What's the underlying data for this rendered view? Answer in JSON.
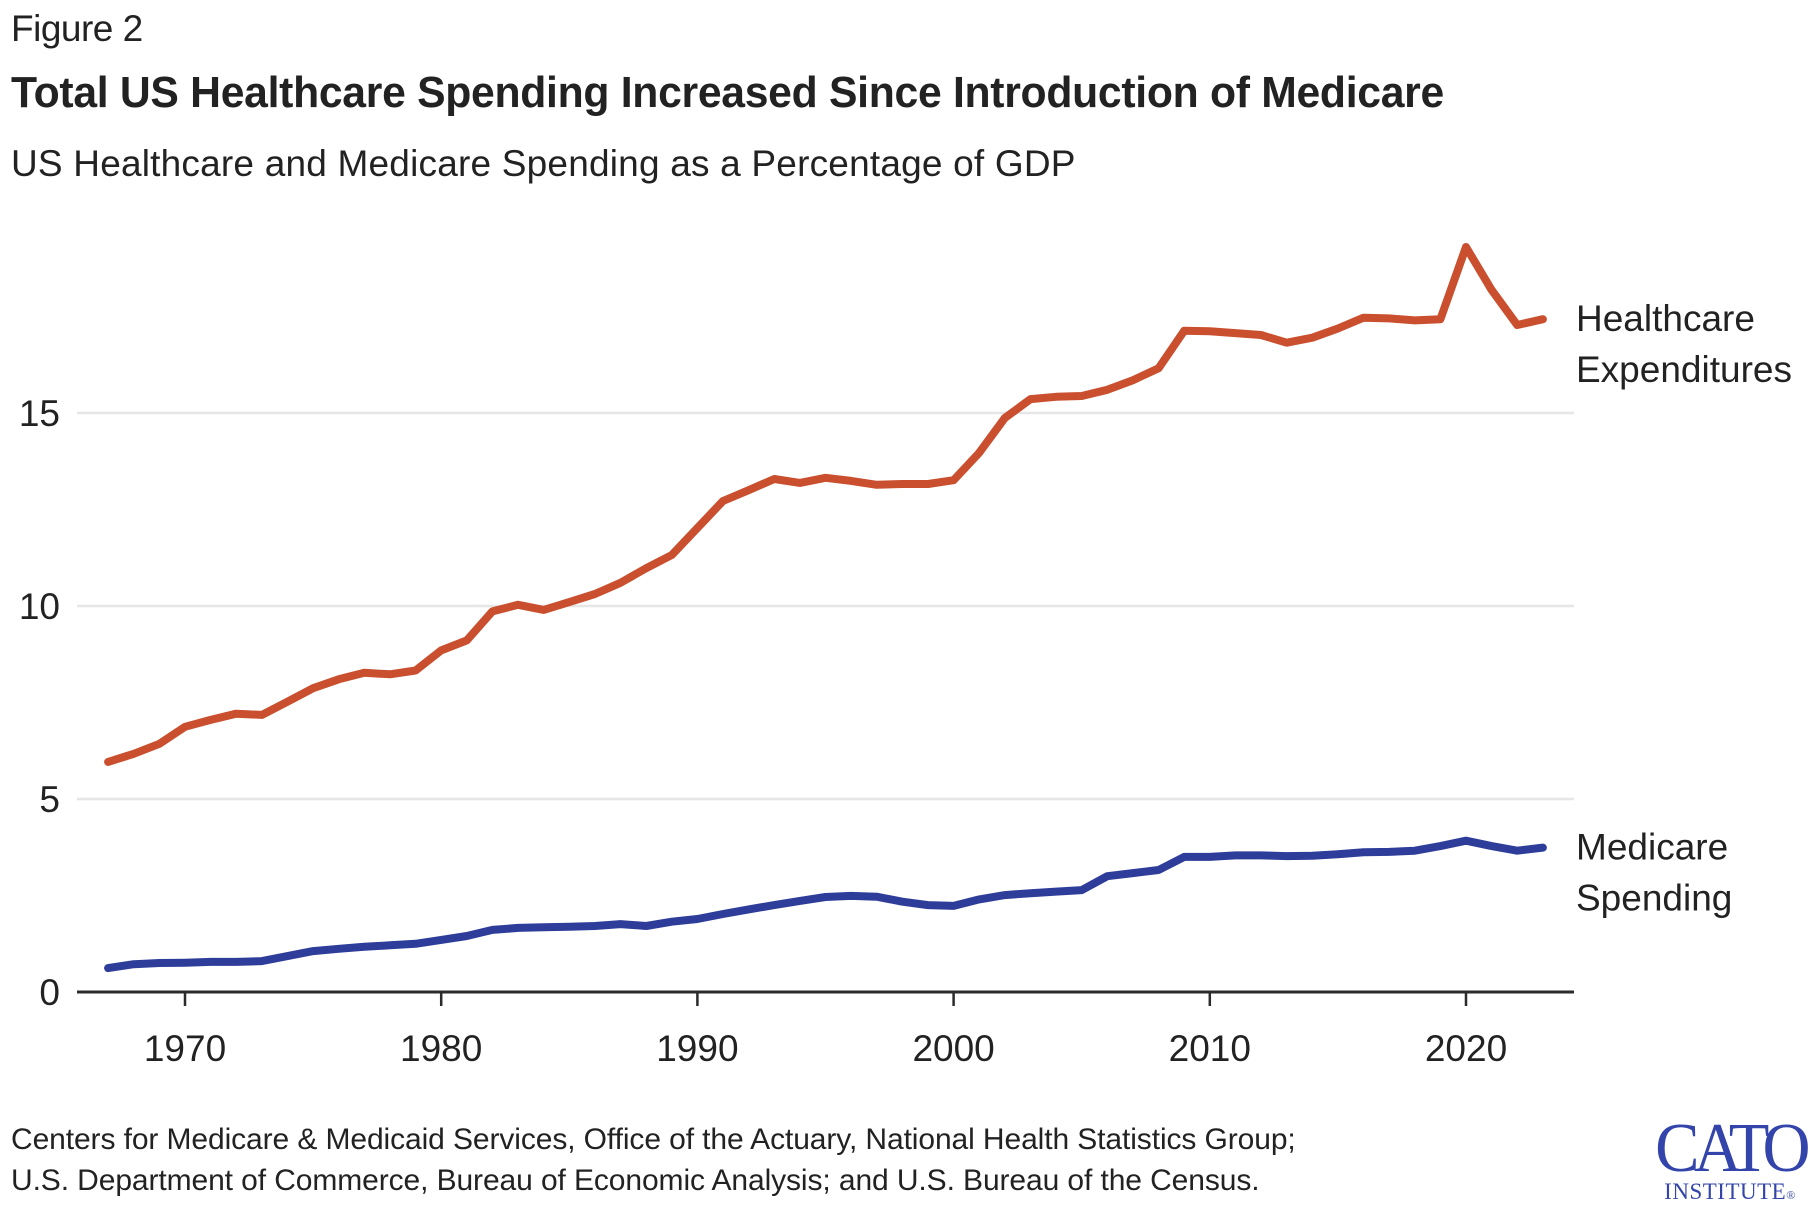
{
  "header": {
    "figure_label": "Figure 2",
    "title": "Total US Healthcare Spending Increased Since Introduction of Medicare",
    "subtitle": "US Healthcare and Medicare Spending as a Percentage of GDP"
  },
  "footer": {
    "source_lines": [
      "Centers for Medicare & Medicaid Services, Office of the Actuary, National Health Statistics Group;",
      "U.S. Department of Commerce, Bureau of Economic Analysis; and U.S. Bureau of the Census."
    ],
    "logo_main": "CATO",
    "logo_sub": "INSTITUTE",
    "logo_mark": "®"
  },
  "colors": {
    "healthcare": "#c94f2e",
    "medicare": "#2e3d99",
    "grid": "#e6e6e6",
    "axis": "#2b2b2b",
    "logo": "#3344aa"
  },
  "chart_data": {
    "type": "line",
    "title": "Total US Healthcare Spending Increased Since Introduction of Medicare",
    "subtitle": "US Healthcare and Medicare Spending as a Percentage of GDP",
    "xlabel": "",
    "ylabel": "",
    "xlim": [
      1967,
      2023
    ],
    "ylim": [
      0,
      19.5
    ],
    "grid": true,
    "legend": "direct-labels-right",
    "x_ticks": [
      1970,
      1980,
      1990,
      2000,
      2010,
      2020
    ],
    "x_tick_labels": [
      "1970",
      "1980",
      "1990",
      "2000",
      "2010",
      "2020"
    ],
    "y_ticks": [
      0,
      5,
      10,
      15
    ],
    "y_tick_labels": [
      "0",
      "5",
      "10",
      "15"
    ],
    "x": [
      1967,
      1968,
      1969,
      1970,
      1971,
      1972,
      1973,
      1974,
      1975,
      1976,
      1977,
      1978,
      1979,
      1980,
      1981,
      1982,
      1983,
      1984,
      1985,
      1986,
      1987,
      1988,
      1989,
      1990,
      1991,
      1992,
      1993,
      1994,
      1995,
      1996,
      1997,
      1998,
      1999,
      2000,
      2001,
      2002,
      2003,
      2004,
      2005,
      2006,
      2007,
      2008,
      2009,
      2010,
      2011,
      2012,
      2013,
      2014,
      2015,
      2016,
      2017,
      2018,
      2019,
      2020,
      2021,
      2022,
      2023
    ],
    "series": [
      {
        "name": "Healthcare Expenditures",
        "label_lines": [
          "Healthcare",
          "Expenditures"
        ],
        "color": "#c94f2e",
        "values": [
          5.96,
          6.17,
          6.43,
          6.87,
          7.05,
          7.21,
          7.18,
          7.52,
          7.87,
          8.1,
          8.27,
          8.23,
          8.33,
          8.85,
          9.11,
          9.86,
          10.03,
          9.9,
          10.1,
          10.31,
          10.6,
          10.98,
          11.32,
          12.02,
          12.72,
          13.0,
          13.29,
          13.19,
          13.32,
          13.24,
          13.14,
          13.16,
          13.16,
          13.26,
          13.97,
          14.87,
          15.36,
          15.42,
          15.44,
          15.6,
          15.85,
          16.16,
          17.13,
          17.12,
          17.07,
          17.02,
          16.82,
          16.95,
          17.19,
          17.47,
          17.45,
          17.4,
          17.43,
          19.3,
          18.19,
          17.28,
          17.43
        ]
      },
      {
        "name": "Medicare Spending",
        "label_lines": [
          "Medicare",
          "Spending"
        ],
        "color": "#2e3d99",
        "values": [
          0.62,
          0.72,
          0.75,
          0.76,
          0.78,
          0.78,
          0.8,
          0.93,
          1.06,
          1.12,
          1.17,
          1.21,
          1.25,
          1.35,
          1.45,
          1.61,
          1.66,
          1.68,
          1.69,
          1.71,
          1.76,
          1.71,
          1.82,
          1.89,
          2.02,
          2.14,
          2.25,
          2.36,
          2.46,
          2.49,
          2.47,
          2.34,
          2.25,
          2.23,
          2.4,
          2.51,
          2.56,
          2.6,
          2.64,
          3.0,
          3.08,
          3.16,
          3.5,
          3.5,
          3.54,
          3.54,
          3.52,
          3.53,
          3.57,
          3.62,
          3.63,
          3.66,
          3.78,
          3.92,
          3.78,
          3.66,
          3.74
        ]
      }
    ]
  }
}
